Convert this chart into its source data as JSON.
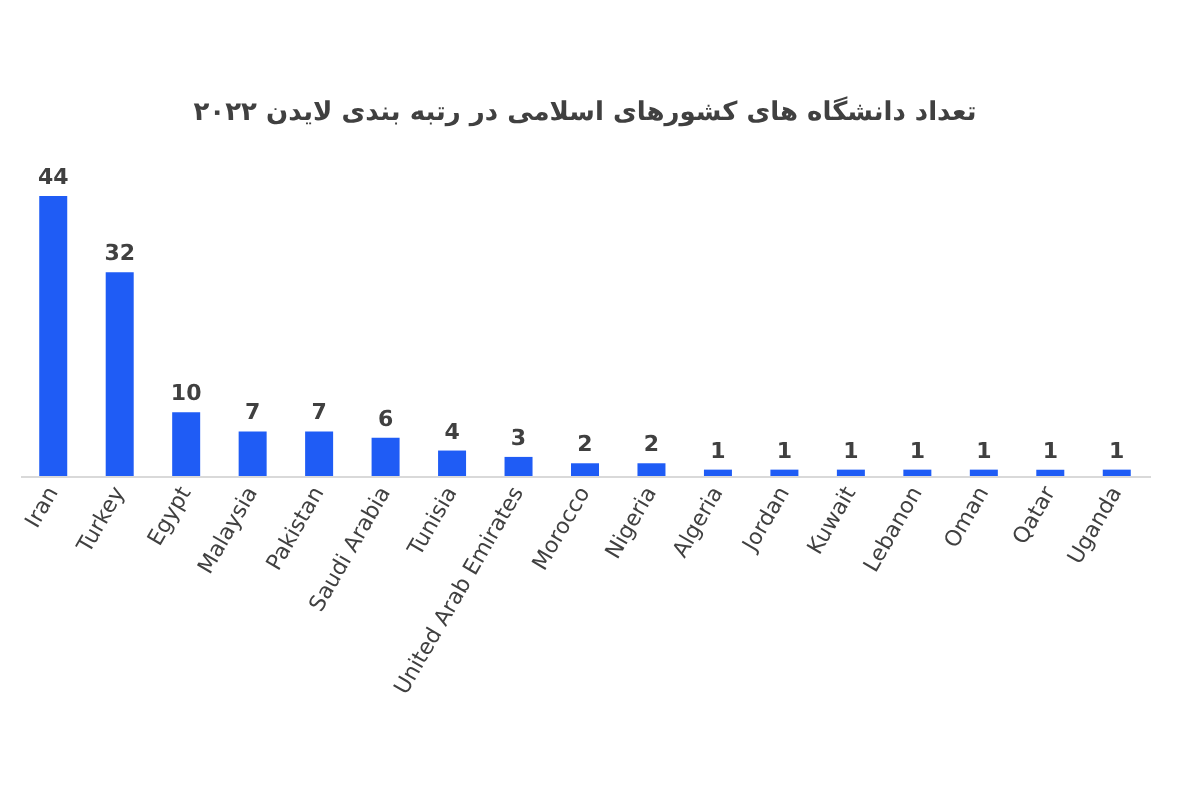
{
  "chart_data": {
    "type": "bar",
    "title": "تعداد دانشگاه های کشورهای اسلامی در رتبه بندی لایدن ۲۰۲۲",
    "categories": [
      "Iran",
      "Turkey",
      "Egypt",
      "Malaysia",
      "Pakistan",
      "Saudi Arabia",
      "Tunisia",
      "United Arab Emirates",
      "Morocco",
      "Nigeria",
      "Algeria",
      "Jordan",
      "Kuwait",
      "Lebanon",
      "Oman",
      "Qatar",
      "Uganda"
    ],
    "values": [
      44,
      32,
      10,
      7,
      7,
      6,
      4,
      3,
      2,
      2,
      1,
      1,
      1,
      1,
      1,
      1,
      1
    ],
    "color": "#1f5cf5",
    "data_labels": true
  }
}
